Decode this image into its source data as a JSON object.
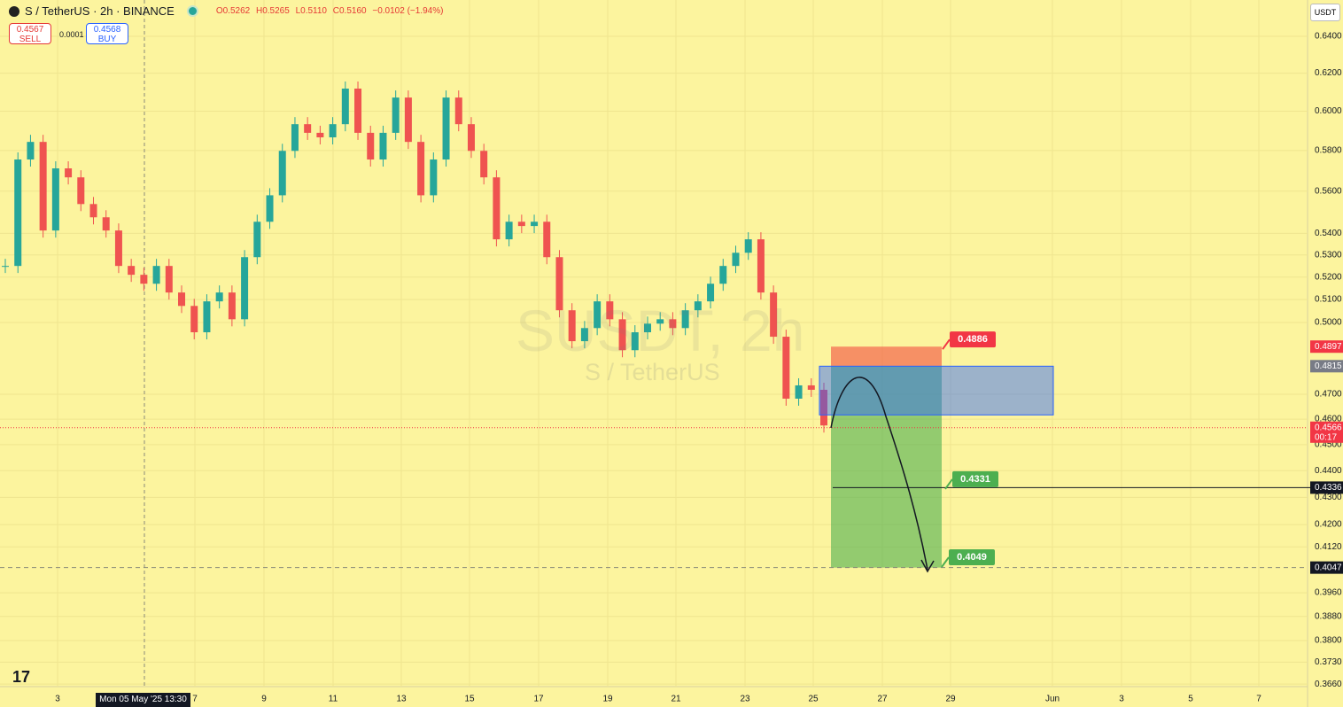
{
  "header": {
    "symbol": "S / TetherUS · 2h · BINANCE",
    "open": "O0.5262",
    "high": "H0.5265",
    "low": "L0.5110",
    "close": "C0.5160",
    "change": "−0.0102 (−1.94%)",
    "sell_price": "0.4567",
    "sell": "SELL",
    "spread": "0.0001",
    "buy_price": "0.4568",
    "buy": "BUY",
    "currency": "USDT"
  },
  "watermark": {
    "ticker": "SUSDT, 2h",
    "name": "S / TetherUS"
  },
  "crosshair_date": "Mon 05 May '25  13:30",
  "chart_data": {
    "type": "candlestick",
    "log": true,
    "grid": true,
    "up_color": "#26a69a",
    "down_color": "#ef5350",
    "closes": [
      0.525,
      0.5755,
      0.5843,
      0.5413,
      0.5711,
      0.5667,
      0.5538,
      0.5475,
      0.5413,
      0.525,
      0.521,
      0.517,
      0.525,
      0.5131,
      0.5072,
      0.4958,
      0.5092,
      0.5131,
      0.5014,
      0.529,
      0.5454,
      0.558,
      0.5798,
      0.5933,
      0.5889,
      0.5866,
      0.5933,
      0.6118,
      0.5889,
      0.5755,
      0.5889,
      0.6071,
      0.5843,
      0.558,
      0.5755,
      0.6071,
      0.5933,
      0.5798,
      0.5667,
      0.5372,
      0.5454,
      0.5434,
      0.5454,
      0.529,
      0.5053,
      0.492,
      0.4976,
      0.5092,
      0.5014,
      0.4882,
      0.4958,
      0.4995,
      0.5014,
      0.4976,
      0.5053,
      0.5092,
      0.517,
      0.525,
      0.531,
      0.5372,
      0.5131,
      0.4939,
      0.4682,
      0.4736,
      0.4718,
      0.4575
    ],
    "ylim": [
      0.3652,
      0.6604
    ],
    "yticks": [
      {
        "value": 0.64,
        "label": "0.6400"
      },
      {
        "value": 0.62,
        "label": "0.6200"
      },
      {
        "value": 0.6,
        "label": "0.6000"
      },
      {
        "value": 0.58,
        "label": "0.5800"
      },
      {
        "value": 0.56,
        "label": "0.5600"
      },
      {
        "value": 0.54,
        "label": "0.5400"
      },
      {
        "value": 0.53,
        "label": "0.5300"
      },
      {
        "value": 0.52,
        "label": "0.5200"
      },
      {
        "value": 0.51,
        "label": "0.5100"
      },
      {
        "value": 0.5,
        "label": "0.5000"
      },
      {
        "value": 0.47,
        "label": "0.4700"
      },
      {
        "value": 0.46,
        "label": "0.4600"
      },
      {
        "value": 0.45,
        "label": "0.4500"
      },
      {
        "value": 0.44,
        "label": "0.4400"
      },
      {
        "value": 0.43,
        "label": "0.4300"
      },
      {
        "value": 0.42,
        "label": "0.4200"
      },
      {
        "value": 0.412,
        "label": "0.4120"
      },
      {
        "value": 0.396,
        "label": "0.3960"
      },
      {
        "value": 0.388,
        "label": "0.3880"
      },
      {
        "value": 0.38,
        "label": "0.3800"
      },
      {
        "value": 0.373,
        "label": "0.3730"
      },
      {
        "value": 0.366,
        "label": "0.3660"
      }
    ],
    "xticks": [
      "3",
      "7",
      "9",
      "11",
      "13",
      "15",
      "17",
      "19",
      "21",
      "23",
      "25",
      "27",
      "29",
      "Jun",
      "3",
      "5",
      "7"
    ]
  },
  "overlay": {
    "last_price": {
      "value": 0.4566,
      "label": "0.4566",
      "timer": "00:17",
      "color": "#f23645"
    },
    "stop_axis": {
      "value": 0.4897,
      "label": "0.4897",
      "color": "#f23645"
    },
    "entry_axis": {
      "value": 0.4815,
      "label": "0.4815",
      "color": "#787b86"
    },
    "target1_axis": {
      "value": 0.4336,
      "label": "0.4336",
      "color": "#131722"
    },
    "target2_axis": {
      "value": 0.4047,
      "label": "0.4047",
      "color": "#131722"
    },
    "stop_tag": {
      "value": 0.4886,
      "label": "0.4886",
      "color": "#f23645"
    },
    "target1_tag": {
      "value": 0.4331,
      "label": "0.4331",
      "color": "#4caf50"
    },
    "target2_tag": {
      "value": 0.4049,
      "label": "0.4049",
      "color": "#4caf50"
    }
  }
}
